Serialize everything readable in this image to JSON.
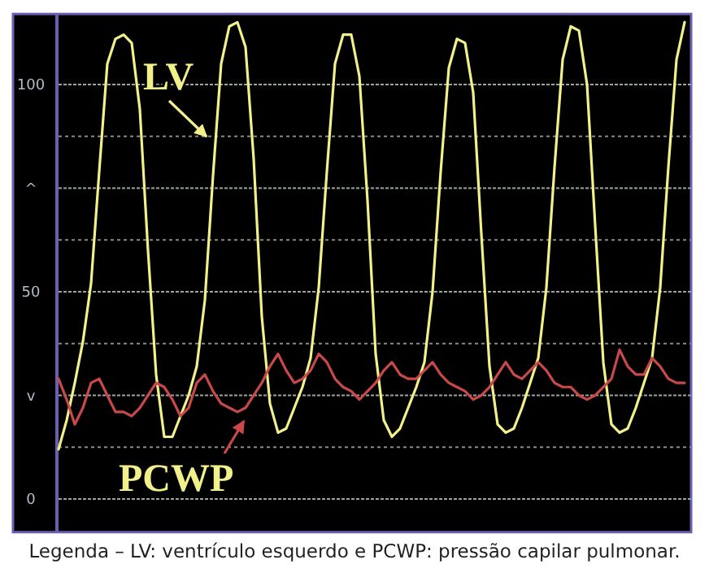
{
  "chart_data": {
    "type": "line",
    "categories": [
      null,
      null,
      null,
      null,
      null,
      null,
      null,
      null,
      null,
      null,
      null,
      null,
      null,
      null,
      null,
      null,
      null,
      null,
      null,
      null,
      null,
      null,
      null,
      null,
      null,
      null,
      null,
      null,
      null,
      null,
      null,
      null,
      null,
      null,
      null,
      null,
      null,
      null,
      null,
      null,
      null,
      null,
      null,
      null,
      null,
      null,
      null,
      null,
      null,
      null,
      null,
      null,
      null,
      null,
      null,
      null,
      null,
      null,
      null,
      null,
      null,
      null,
      null,
      null,
      null,
      null,
      null,
      null,
      null,
      null,
      null,
      null,
      null,
      null,
      null,
      null,
      null,
      null
    ],
    "series": [
      {
        "name": "LV",
        "color": "#f2f08a",
        "values": [
          12,
          19,
          28,
          38,
          52,
          79,
          105,
          111,
          112,
          110,
          94,
          60,
          30,
          15,
          15,
          20,
          25,
          32,
          48,
          78,
          105,
          114,
          115,
          109,
          82,
          44,
          23,
          16,
          17,
          22,
          27,
          34,
          51,
          79,
          105,
          112,
          112,
          102,
          72,
          35,
          19,
          15,
          17,
          22,
          27,
          33,
          50,
          79,
          104,
          111,
          110,
          98,
          64,
          32,
          18,
          16,
          17,
          22,
          28,
          34,
          51,
          80,
          106,
          114,
          113,
          100,
          66,
          33,
          18,
          16,
          17,
          22,
          28,
          34,
          51,
          80,
          106,
          115
        ]
      },
      {
        "name": "PCWP",
        "color": "#c9484a",
        "values": [
          29,
          24,
          18,
          22,
          28,
          29,
          25,
          21,
          21,
          20,
          22,
          25,
          28,
          27,
          24,
          20,
          22,
          28,
          30,
          26,
          23,
          22,
          21,
          22,
          25,
          28,
          32,
          35,
          31,
          28,
          29,
          31,
          35,
          33,
          29,
          27,
          26,
          24,
          26,
          28,
          31,
          33,
          30,
          29,
          29,
          31,
          33,
          30,
          28,
          27,
          26,
          24,
          25,
          27,
          30,
          33,
          30,
          29,
          31,
          33,
          31,
          28,
          27,
          27,
          25,
          24,
          25,
          27,
          29,
          36,
          32,
          30,
          30,
          34,
          32,
          29,
          28,
          28
        ]
      }
    ],
    "ylim": [
      -8,
      117
    ],
    "yticks": [
      0,
      {
        "value": 12.5,
        "label": null
      },
      {
        "value": 25,
        "label": "v"
      },
      {
        "value": 37.5,
        "label": null
      },
      50,
      {
        "value": 62.5,
        "label": null
      },
      {
        "value": 75,
        "label": "^"
      },
      {
        "value": 87.5,
        "label": null
      },
      100
    ],
    "grid": "y",
    "tick_labels": "y",
    "annotations": [
      "Legenda – LV: ventrículo esquerdo e PCWP: pressão capilar pulmonar."
    ]
  }
}
